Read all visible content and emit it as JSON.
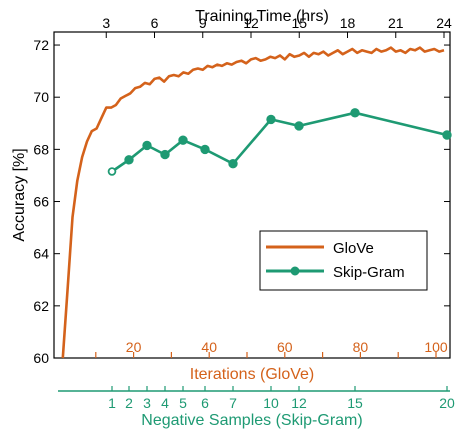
{
  "chart_data": {
    "type": "line",
    "title": "",
    "ylabel": "Accuracy [%]",
    "ylim": [
      60,
      72.5
    ],
    "yticks": [
      60,
      62,
      64,
      66,
      68,
      70,
      72
    ],
    "top_axis": {
      "label": "Training Time (hrs)",
      "ticks": [
        3,
        6,
        9,
        12,
        15,
        18,
        21,
        24
      ]
    },
    "bottom_axis_1": {
      "label": "Iterations (GloVe)",
      "ticks": [
        20,
        40,
        60,
        80,
        100
      ],
      "color": "#d4621b"
    },
    "bottom_axis_2": {
      "label": "Negative Samples (Skip-Gram)",
      "ticks": [
        "1",
        "2",
        "3",
        "4",
        "5",
        "6",
        "7",
        "10",
        "12",
        "15",
        "20"
      ],
      "color": "#1e9a73"
    },
    "legend": {
      "position": "lower-right",
      "entries": [
        "GloVe",
        "Skip-Gram"
      ]
    },
    "grid": false,
    "series": [
      {
        "name": "GloVe",
        "color": "#d4621b",
        "x_axis": "training_time_hrs",
        "x": [
          0.3,
          0.6,
          0.9,
          1.2,
          1.5,
          1.8,
          2.1,
          2.4,
          2.7,
          3.0,
          3.3,
          3.6,
          3.9,
          4.2,
          4.5,
          4.8,
          5.1,
          5.4,
          5.7,
          6.0,
          6.3,
          6.6,
          6.9,
          7.2,
          7.5,
          7.8,
          8.1,
          8.4,
          8.7,
          9.0,
          9.3,
          9.6,
          9.9,
          10.2,
          10.5,
          10.8,
          11.1,
          11.4,
          11.7,
          12.0,
          12.3,
          12.6,
          12.9,
          13.2,
          13.5,
          13.8,
          14.1,
          14.4,
          14.7,
          15.0,
          15.3,
          15.6,
          15.9,
          16.2,
          16.5,
          16.8,
          17.1,
          17.4,
          17.7,
          18.0,
          18.3,
          18.6,
          18.9,
          19.2,
          19.5,
          19.8,
          20.1,
          20.4,
          20.7,
          21.0,
          21.3,
          21.6,
          21.9,
          22.2,
          22.5,
          22.8,
          23.1,
          23.4,
          23.7,
          24.0
        ],
        "values": [
          60.0,
          62.7,
          65.4,
          66.8,
          67.7,
          68.3,
          68.7,
          68.8,
          69.2,
          69.6,
          69.6,
          69.7,
          69.95,
          70.05,
          70.15,
          70.35,
          70.4,
          70.55,
          70.5,
          70.7,
          70.75,
          70.6,
          70.8,
          70.85,
          70.8,
          70.95,
          70.9,
          71.05,
          71.1,
          71.05,
          71.2,
          71.15,
          71.25,
          71.2,
          71.3,
          71.25,
          71.35,
          71.4,
          71.3,
          71.45,
          71.5,
          71.4,
          71.45,
          71.55,
          71.5,
          71.6,
          71.45,
          71.65,
          71.55,
          71.6,
          71.7,
          71.55,
          71.7,
          71.65,
          71.75,
          71.6,
          71.7,
          71.8,
          71.65,
          71.75,
          71.85,
          71.7,
          71.8,
          71.75,
          71.7,
          71.85,
          71.75,
          71.8,
          71.9,
          71.75,
          71.8,
          71.7,
          71.85,
          71.8,
          71.9,
          71.75,
          71.8,
          71.85,
          71.75,
          71.8
        ]
      },
      {
        "name": "Skip-Gram",
        "color": "#1e9a73",
        "x_axis": "negative_samples",
        "x": [
          "1",
          "2",
          "3",
          "4",
          "5",
          "6",
          "7",
          "10",
          "12",
          "15",
          "20"
        ],
        "values": [
          67.15,
          67.6,
          68.15,
          67.8,
          68.35,
          68.0,
          67.45,
          69.15,
          68.9,
          69.4,
          68.55
        ]
      }
    ]
  }
}
